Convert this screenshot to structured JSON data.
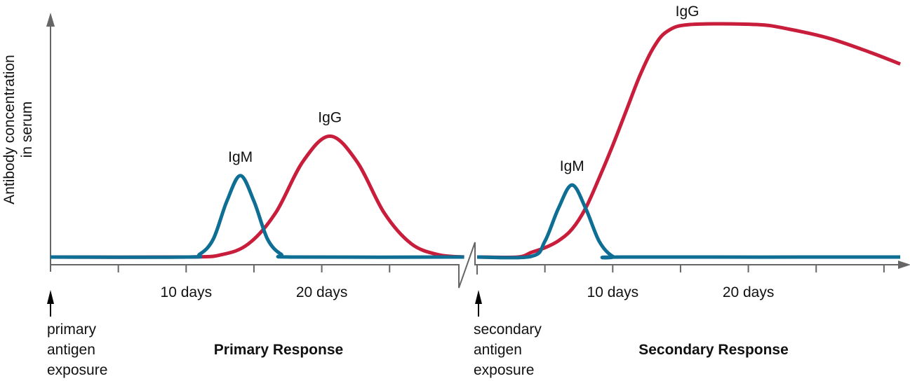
{
  "chart_data": {
    "type": "line",
    "ylabel": [
      "Antibody concentration",
      "in serum"
    ],
    "colors": {
      "IgM": "#0e6e94",
      "IgG": "#c81e3c",
      "axis": "#666666"
    },
    "panels": [
      {
        "title": "Primary Response",
        "exposure_label": [
          "primary",
          "antigen",
          "exposure"
        ],
        "xlim": [
          0,
          30.5
        ],
        "tick_step_days": 5,
        "tick_labels": [
          {
            "day": 10,
            "label": "10 days"
          },
          {
            "day": 20,
            "label": "20 days"
          }
        ],
        "series": [
          {
            "name": "IgM",
            "label_day": 14,
            "points": [
              [
                0,
                0
              ],
              [
                10,
                0
              ],
              [
                11,
                0.012
              ],
              [
                12,
                0.077
              ],
              [
                13,
                0.24
              ],
              [
                14,
                0.35
              ],
              [
                15,
                0.24
              ],
              [
                16,
                0.077
              ],
              [
                17,
                0.012
              ],
              [
                18,
                0
              ],
              [
                30.5,
                0
              ]
            ]
          },
          {
            "name": "IgG",
            "label_day": 20.6,
            "points": [
              [
                0,
                0
              ],
              [
                10,
                0
              ],
              [
                12.6,
                0.01
              ],
              [
                14.6,
                0.057
              ],
              [
                16.6,
                0.19
              ],
              [
                18.6,
                0.41
              ],
              [
                20.6,
                0.52
              ],
              [
                22.6,
                0.41
              ],
              [
                24.6,
                0.19
              ],
              [
                26.6,
                0.057
              ],
              [
                28.6,
                0.01
              ],
              [
                30.5,
                0
              ]
            ]
          }
        ]
      },
      {
        "title": "Secondary Response",
        "exposure_label": [
          "secondary",
          "antigen",
          "exposure"
        ],
        "xlim": [
          0,
          31.5
        ],
        "tick_step_days": 5,
        "tick_labels": [
          {
            "day": 10,
            "label": "10 days"
          },
          {
            "day": 20,
            "label": "20 days"
          }
        ],
        "series": [
          {
            "name": "IgM",
            "label_day": 7,
            "points": [
              [
                0,
                0
              ],
              [
                4,
                0.003
              ],
              [
                5,
                0.068
              ],
              [
                6,
                0.21
              ],
              [
                7,
                0.31
              ],
              [
                8,
                0.21
              ],
              [
                9,
                0.068
              ],
              [
                10,
                0.003
              ],
              [
                11,
                0
              ],
              [
                31.2,
                0
              ]
            ]
          },
          {
            "name": "IgG",
            "label_day": 15.5,
            "points": [
              [
                0,
                0
              ],
              [
                3,
                0
              ],
              [
                4,
                0.02
              ],
              [
                5,
                0.04
              ],
              [
                6,
                0.07
              ],
              [
                7,
                0.12
              ],
              [
                8,
                0.21
              ],
              [
                9,
                0.34
              ],
              [
                10,
                0.48
              ],
              [
                11,
                0.63
              ],
              [
                12,
                0.78
              ],
              [
                13,
                0.9
              ],
              [
                14,
                0.97
              ],
              [
                15.7,
                1
              ],
              [
                20.6,
                1
              ],
              [
                23,
                0.98
              ],
              [
                26,
                0.94
              ],
              [
                29,
                0.88
              ],
              [
                31.2,
                0.83
              ]
            ]
          }
        ]
      }
    ]
  }
}
